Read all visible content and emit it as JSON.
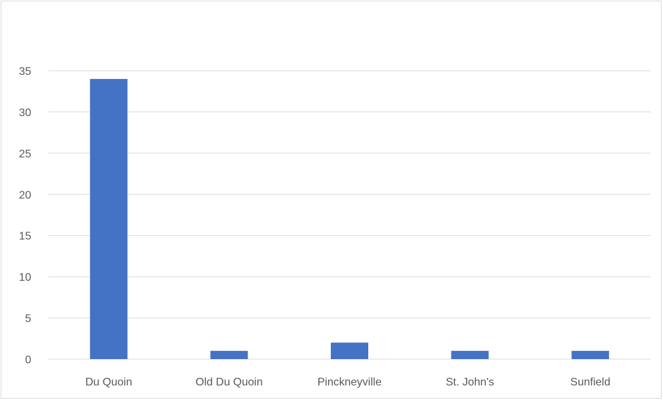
{
  "chart_data": {
    "type": "bar",
    "title": "",
    "xlabel": "",
    "ylabel": "",
    "categories": [
      "Du Quoin",
      "Old Du Quoin",
      "Pinckneyville",
      "St. John's",
      "Sunfield"
    ],
    "values": [
      34,
      1,
      2,
      1,
      1
    ],
    "ylim": [
      0,
      35
    ],
    "yticks": [
      "0",
      "5",
      "10",
      "15",
      "20",
      "25",
      "30",
      "35"
    ],
    "grid": true,
    "legend": "none",
    "bar_color": "#4472c4",
    "grid_color": "#d9d9d9"
  }
}
